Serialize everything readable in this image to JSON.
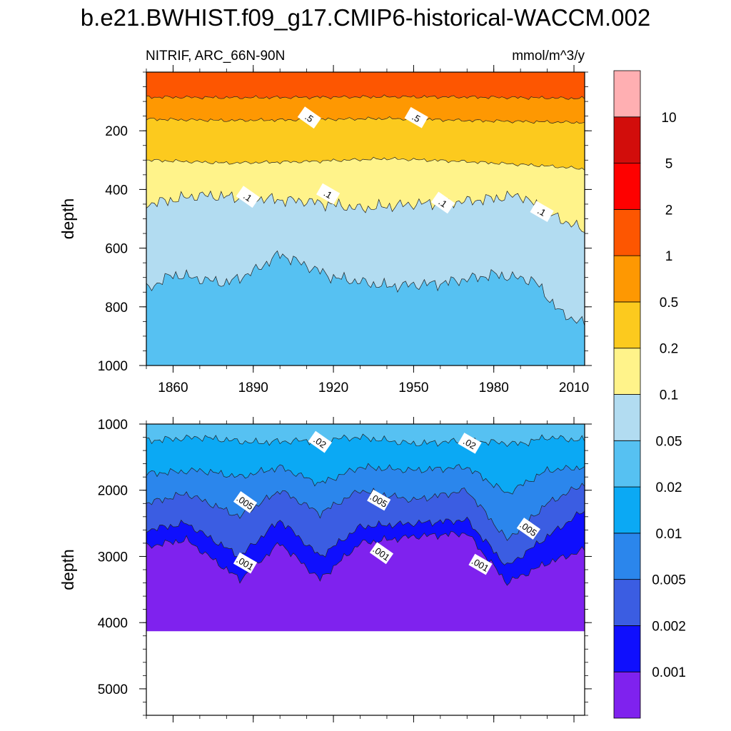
{
  "title": "b.e21.BWHIST.f09_g17.CMIP6-historical-WACCM.002",
  "subtitle_left": "NITRIF, ARC_66N-90N",
  "subtitle_right": "mmol/m^3/y",
  "colorbar": {
    "colors": [
      "#7f22ee",
      "#0f0ffd",
      "#3b5de2",
      "#2b86ec",
      "#0ba9f4",
      "#56c1f2",
      "#b2dcf1",
      "#fff38a",
      "#fcca1e",
      "#fe9802",
      "#fd5601",
      "#fe0100",
      "#d20d0b",
      "#ffafb2"
    ],
    "labels": [
      "0.001",
      "0.002",
      "0.005",
      "0.01",
      "0.02",
      "0.05",
      "0.1",
      "0.2",
      "0.5",
      "1",
      "2",
      "5",
      "10"
    ]
  },
  "chart_data": [
    {
      "type": "heatmap",
      "panel": "upper",
      "ylabel": "depth",
      "xlabel": "",
      "xlim": [
        1850,
        2014
      ],
      "ylim": [
        1000,
        0
      ],
      "x_ticks": [
        "1860",
        "1890",
        "1920",
        "1950",
        "1980",
        "2010"
      ],
      "y_ticks": [
        "200",
        "400",
        "600",
        "800",
        "1000"
      ],
      "contour_labels": [
        ".5",
        ".5",
        ".1",
        ".1",
        ".1",
        ".1"
      ],
      "contour_label_positions": [
        [
          1911,
          155
        ],
        [
          1951,
          155
        ],
        [
          1888,
          425
        ],
        [
          1918,
          415
        ],
        [
          1961,
          445
        ],
        [
          1998,
          475
        ]
      ],
      "contour_boundary_depths": [
        {
          "level": "1",
          "x": [
            1850,
            1880,
            1910,
            1940,
            1970,
            2000,
            2014
          ],
          "depth": [
            85,
            87,
            86,
            84,
            85,
            88,
            90
          ]
        },
        {
          "level": "0.5",
          "x": [
            1850,
            1880,
            1910,
            1940,
            1970,
            2000,
            2014
          ],
          "depth": [
            160,
            165,
            162,
            158,
            165,
            170,
            172
          ]
        },
        {
          "level": "0.2",
          "x": [
            1850,
            1880,
            1910,
            1940,
            1970,
            2000,
            2014
          ],
          "depth": [
            300,
            310,
            305,
            295,
            305,
            320,
            330
          ]
        },
        {
          "level": "0.1",
          "x": [
            1850,
            1870,
            1890,
            1910,
            1930,
            1950,
            1970,
            1990,
            2000,
            2014
          ],
          "depth": [
            450,
            420,
            430,
            440,
            465,
            450,
            440,
            420,
            480,
            540
          ]
        },
        {
          "level": "0.05",
          "x": [
            1850,
            1860,
            1880,
            1890,
            1900,
            1920,
            1940,
            1960,
            1980,
            1995,
            2005,
            2014
          ],
          "depth": [
            740,
            690,
            720,
            680,
            620,
            700,
            730,
            720,
            690,
            710,
            820,
            860
          ]
        }
      ]
    },
    {
      "type": "heatmap",
      "panel": "lower",
      "ylabel": "depth",
      "xlabel": "",
      "xlim": [
        1850,
        2014
      ],
      "ylim": [
        5400,
        1000
      ],
      "x_ticks": [],
      "y_ticks": [
        "1000",
        "2000",
        "3000",
        "4000",
        "5000"
      ],
      "seafloor_depth": 4130,
      "contour_labels": [
        ".02",
        ".02",
        ".005",
        ".005",
        ".005",
        ".001",
        ".001",
        ".001"
      ],
      "contour_label_positions": [
        [
          1915,
          1270
        ],
        [
          1971,
          1290
        ],
        [
          1887,
          2180
        ],
        [
          1937,
          2150
        ],
        [
          1993,
          2580
        ],
        [
          1887,
          3100
        ],
        [
          1938,
          2950
        ],
        [
          1975,
          3120
        ]
      ],
      "contour_boundary_depths": [
        {
          "level": "0.02",
          "x": [
            1850,
            1870,
            1890,
            1910,
            1930,
            1950,
            1970,
            1990,
            2000,
            2014
          ],
          "depth": [
            1250,
            1200,
            1280,
            1250,
            1200,
            1300,
            1250,
            1300,
            1200,
            1250
          ]
        },
        {
          "level": "0.01",
          "x": [
            1850,
            1870,
            1885,
            1900,
            1915,
            1930,
            1950,
            1970,
            1985,
            2000,
            2014
          ],
          "depth": [
            1750,
            1700,
            1800,
            1650,
            1900,
            1650,
            1700,
            1650,
            2050,
            1700,
            1650
          ]
        },
        {
          "level": "0.005",
          "x": [
            1850,
            1865,
            1885,
            1900,
            1915,
            1930,
            1950,
            1970,
            1985,
            2000,
            2014
          ],
          "depth": [
            2200,
            2050,
            2400,
            2000,
            2350,
            2000,
            2150,
            2000,
            2750,
            2200,
            1900
          ]
        },
        {
          "level": "0.002",
          "x": [
            1850,
            1865,
            1885,
            1900,
            1915,
            1930,
            1950,
            1970,
            1985,
            2000,
            2014
          ],
          "depth": [
            2600,
            2500,
            3000,
            2450,
            3000,
            2550,
            2500,
            2450,
            3150,
            2700,
            2300
          ]
        },
        {
          "level": "0.001",
          "x": [
            1850,
            1865,
            1885,
            1900,
            1915,
            1930,
            1950,
            1970,
            1985,
            2000,
            2014
          ],
          "depth": [
            2850,
            2750,
            3350,
            2800,
            3350,
            2800,
            2700,
            2650,
            3400,
            3100,
            2900
          ]
        }
      ]
    }
  ]
}
